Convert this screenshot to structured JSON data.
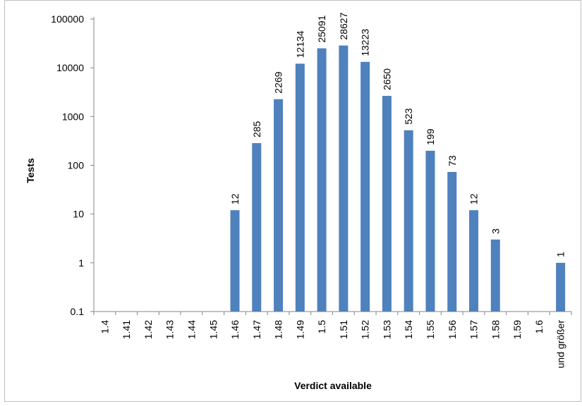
{
  "chart_data": {
    "type": "bar",
    "title": "",
    "xlabel": "Verdict available",
    "ylabel": "Tests",
    "y_scale": "log",
    "ylim": [
      0.1,
      100000
    ],
    "grid": false,
    "legend": "none",
    "bar_color": "#4F81BD",
    "y_ticks": [
      "0.1",
      "1",
      "10",
      "100",
      "1000",
      "10000",
      "100000"
    ],
    "y_tick_values": [
      0.1,
      1,
      10,
      100,
      1000,
      10000,
      100000
    ],
    "categories": [
      "1.4",
      "1.41",
      "1.42",
      "1.43",
      "1.44",
      "1.45",
      "1.46",
      "1.47",
      "1.48",
      "1.49",
      "1.5",
      "1.51",
      "1.52",
      "1.53",
      "1.54",
      "1.55",
      "1.56",
      "1.57",
      "1.58",
      "1.59",
      "1.6",
      "und größer"
    ],
    "values": [
      0,
      0,
      0,
      0,
      0,
      0,
      12,
      285,
      2269,
      12134,
      25091,
      28627,
      13223,
      2650,
      523,
      199,
      73,
      12,
      3,
      0,
      0,
      1
    ]
  }
}
